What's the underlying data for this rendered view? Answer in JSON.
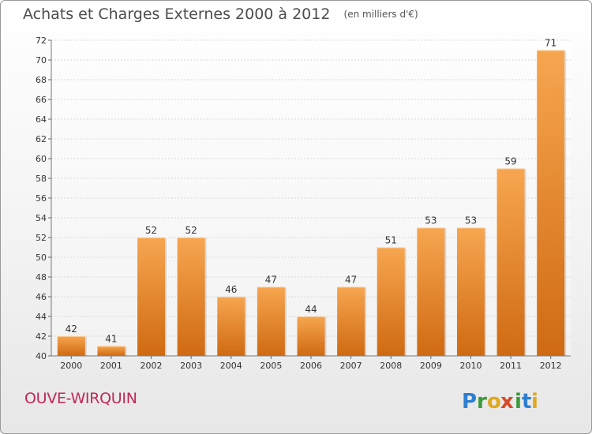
{
  "header": {
    "title": "Achats et Charges Externes 2000 à 2012",
    "unit": "(en milliers d'€)"
  },
  "footer": {
    "commune": "OUVE-WIRQUIN",
    "logo_text": "Proxiti"
  },
  "colors": {
    "bar_top": "#f7a650",
    "bar_bottom": "#cf6a12",
    "grid": "#d9d9d9",
    "axis_text": "#333333",
    "commune": "#c0285a"
  },
  "chart_data": {
    "type": "bar",
    "categories": [
      "2000",
      "2001",
      "2002",
      "2003",
      "2004",
      "2005",
      "2006",
      "2007",
      "2008",
      "2009",
      "2010",
      "2011",
      "2012"
    ],
    "values": [
      42,
      41,
      52,
      52,
      46,
      47,
      44,
      47,
      51,
      53,
      53,
      59,
      71
    ],
    "title": "Achats et Charges Externes 2000 à 2012",
    "ylim": [
      40,
      72
    ],
    "yticks": [
      40,
      42,
      44,
      46,
      48,
      50,
      52,
      54,
      56,
      58,
      60,
      62,
      64,
      66,
      68,
      70,
      72
    ],
    "grid": true,
    "data_labels": true
  }
}
